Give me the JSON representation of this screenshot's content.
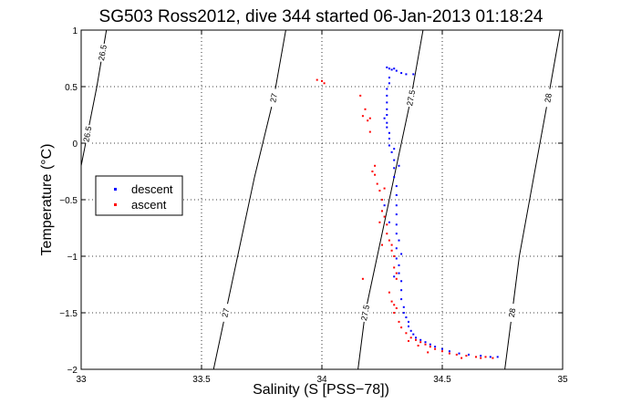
{
  "chart_data": {
    "type": "scatter",
    "title": "SG503 Ross2012, dive 344 started 06-Jan-2013 01:18:24",
    "xlabel": "Salinity (S [PSS−78])",
    "ylabel": "Temperature (°C)",
    "xlim": [
      33,
      35
    ],
    "ylim": [
      -2,
      1
    ],
    "xticks": [
      33,
      33.5,
      34,
      34.5,
      35
    ],
    "xtick_labels": [
      "33",
      "33.5",
      "34",
      "34.5",
      "35"
    ],
    "yticks": [
      -2,
      -1.5,
      -1,
      -0.5,
      0,
      0.5,
      1
    ],
    "ytick_labels": [
      "−2",
      "−1.5",
      "−1",
      "−0.5",
      "0",
      "0.5",
      "1"
    ],
    "grid": "dotted",
    "legend_position": "left-middle",
    "contours": [
      {
        "label": "26.5",
        "points": [
          [
            33.0,
            -0.2
          ],
          [
            33.065,
            0.5
          ],
          [
            33.105,
            1.0
          ]
        ]
      },
      {
        "label": "27",
        "points": [
          [
            33.55,
            -2.0
          ],
          [
            33.6,
            -1.5
          ],
          [
            33.65,
            -1.0
          ],
          [
            33.72,
            -0.3
          ],
          [
            33.8,
            0.4
          ],
          [
            33.85,
            1.0
          ]
        ]
      },
      {
        "label": "27.5",
        "points": [
          [
            34.15,
            -2.0
          ],
          [
            34.18,
            -1.5
          ],
          [
            34.23,
            -1.0
          ],
          [
            34.3,
            -0.3
          ],
          [
            34.37,
            0.4
          ],
          [
            34.42,
            1.0
          ]
        ]
      },
      {
        "label": "28",
        "points": [
          [
            34.76,
            -2.0
          ],
          [
            34.79,
            -1.5
          ],
          [
            34.82,
            -1.0
          ],
          [
            34.88,
            -0.3
          ],
          [
            34.94,
            0.4
          ],
          [
            34.99,
            1.0
          ]
        ]
      }
    ],
    "series": [
      {
        "name": "descent",
        "color": "#0000ff",
        "points": [
          [
            34.27,
            0.67
          ],
          [
            34.28,
            0.66
          ],
          [
            34.29,
            0.65
          ],
          [
            34.3,
            0.66
          ],
          [
            34.31,
            0.64
          ],
          [
            34.33,
            0.62
          ],
          [
            34.35,
            0.61
          ],
          [
            34.38,
            0.61
          ],
          [
            34.28,
            0.58
          ],
          [
            34.28,
            0.53
          ],
          [
            34.27,
            0.48
          ],
          [
            34.27,
            0.42
          ],
          [
            34.27,
            0.36
          ],
          [
            34.27,
            0.3
          ],
          [
            34.27,
            0.25
          ],
          [
            34.26,
            0.22
          ],
          [
            34.27,
            0.18
          ],
          [
            34.27,
            0.14
          ],
          [
            34.28,
            0.09
          ],
          [
            34.28,
            0.04
          ],
          [
            34.28,
            -0.02
          ],
          [
            34.29,
            -0.08
          ],
          [
            34.3,
            -0.15
          ],
          [
            34.3,
            -0.22
          ],
          [
            34.3,
            -0.3
          ],
          [
            34.31,
            -0.38
          ],
          [
            34.31,
            -0.46
          ],
          [
            34.31,
            -0.55
          ],
          [
            34.31,
            -0.63
          ],
          [
            34.31,
            -0.72
          ],
          [
            34.31,
            -0.8
          ],
          [
            34.32,
            -0.86
          ],
          [
            34.31,
            -0.93
          ],
          [
            34.31,
            -1.02
          ],
          [
            34.32,
            -1.08
          ],
          [
            34.32,
            -1.15
          ],
          [
            34.33,
            -1.22
          ],
          [
            34.33,
            -1.3
          ],
          [
            34.33,
            -1.38
          ],
          [
            34.34,
            -1.45
          ],
          [
            34.34,
            -1.5
          ],
          [
            34.35,
            -1.54
          ],
          [
            34.36,
            -1.58
          ],
          [
            34.36,
            -1.62
          ],
          [
            34.37,
            -1.66
          ],
          [
            34.38,
            -1.69
          ],
          [
            34.39,
            -1.72
          ],
          [
            34.41,
            -1.74
          ],
          [
            34.43,
            -1.76
          ],
          [
            34.45,
            -1.78
          ],
          [
            34.47,
            -1.8
          ],
          [
            34.5,
            -1.82
          ],
          [
            34.53,
            -1.84
          ],
          [
            34.57,
            -1.86
          ],
          [
            34.61,
            -1.87
          ],
          [
            34.66,
            -1.88
          ],
          [
            34.7,
            -1.89
          ],
          [
            34.73,
            -1.89
          ],
          [
            34.3,
            -0.05
          ],
          [
            34.32,
            -0.2
          ],
          [
            34.26,
            -0.55
          ],
          [
            34.28,
            -0.7
          ],
          [
            34.33,
            -0.98
          ],
          [
            34.3,
            -1.18
          ]
        ]
      },
      {
        "name": "ascent",
        "color": "#ff0000",
        "points": [
          [
            33.98,
            0.56
          ],
          [
            34.0,
            0.55
          ],
          [
            34.01,
            0.53
          ],
          [
            34.16,
            0.42
          ],
          [
            34.18,
            0.3
          ],
          [
            34.17,
            0.24
          ],
          [
            34.2,
            0.22
          ],
          [
            34.19,
            0.2
          ],
          [
            34.2,
            0.1
          ],
          [
            34.22,
            -0.2
          ],
          [
            34.21,
            -0.25
          ],
          [
            34.22,
            -0.28
          ],
          [
            34.23,
            -0.36
          ],
          [
            34.24,
            -0.42
          ],
          [
            34.25,
            -0.5
          ],
          [
            34.25,
            -0.6
          ],
          [
            34.26,
            -0.65
          ],
          [
            34.27,
            -0.72
          ],
          [
            34.27,
            -0.8
          ],
          [
            34.28,
            -0.86
          ],
          [
            34.29,
            -0.9
          ],
          [
            34.29,
            -0.95
          ],
          [
            34.3,
            -1.0
          ],
          [
            34.3,
            -1.1
          ],
          [
            34.31,
            -1.15
          ],
          [
            34.31,
            -1.2
          ],
          [
            34.29,
            -1.4
          ],
          [
            34.3,
            -1.43
          ],
          [
            34.31,
            -1.46
          ],
          [
            34.3,
            -1.5
          ],
          [
            34.17,
            -1.2
          ],
          [
            34.32,
            -1.58
          ],
          [
            34.33,
            -1.63
          ],
          [
            34.35,
            -1.68
          ],
          [
            34.37,
            -1.72
          ],
          [
            34.39,
            -1.74
          ],
          [
            34.41,
            -1.76
          ],
          [
            34.43,
            -1.78
          ],
          [
            34.45,
            -1.8
          ],
          [
            34.47,
            -1.82
          ],
          [
            34.5,
            -1.84
          ],
          [
            34.53,
            -1.86
          ],
          [
            34.56,
            -1.87
          ],
          [
            34.6,
            -1.88
          ],
          [
            34.64,
            -1.89
          ],
          [
            34.68,
            -1.89
          ],
          [
            34.71,
            -1.9
          ],
          [
            34.25,
            -0.9
          ],
          [
            34.26,
            -0.4
          ],
          [
            34.28,
            -1.32
          ],
          [
            34.24,
            -0.7
          ],
          [
            34.36,
            -1.75
          ],
          [
            34.4,
            -1.79
          ],
          [
            34.44,
            -1.85
          ],
          [
            34.58,
            -1.9
          ],
          [
            34.66,
            -1.9
          ]
        ]
      }
    ]
  }
}
